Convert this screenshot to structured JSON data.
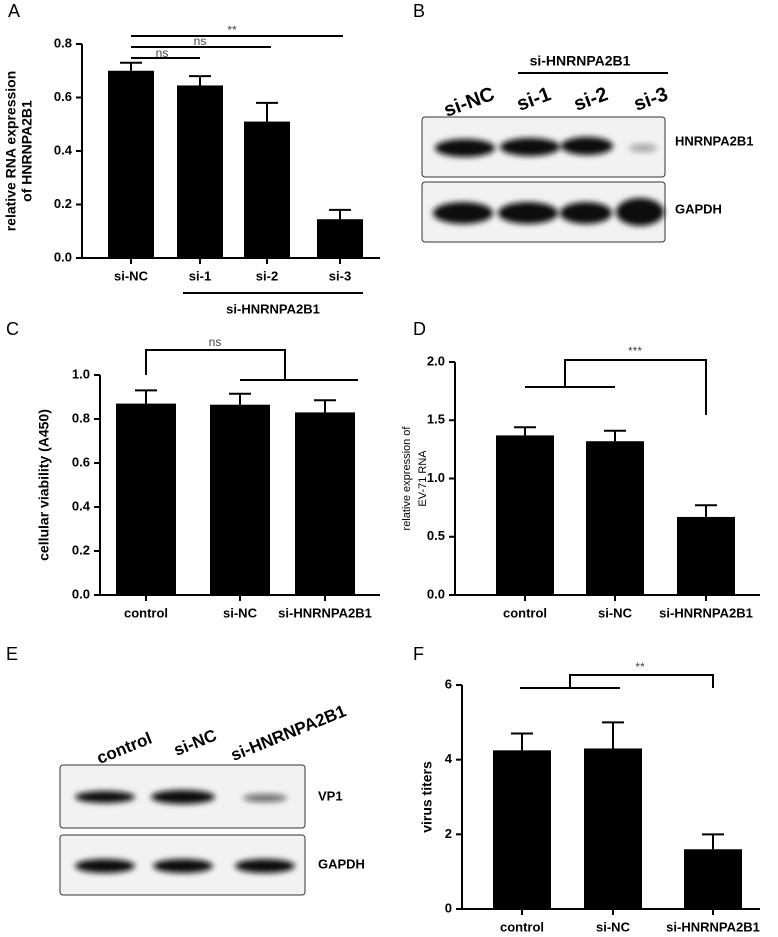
{
  "panel_labels": [
    "A",
    "B",
    "C",
    "D",
    "E",
    "F"
  ],
  "chart_data": [
    {
      "type": "bar",
      "ylabel": [
        "relative RNA expression",
        "of HNRNPA2B1"
      ],
      "categories": [
        "si-NC",
        "si-1",
        "si-2",
        "si-3"
      ],
      "group_label": "si-HNRNPA2B1",
      "values": [
        0.7,
        0.645,
        0.51,
        0.145
      ],
      "errors": [
        0.03,
        0.035,
        0.07,
        0.035
      ],
      "color": "#000000",
      "ylim": [
        0,
        0.8
      ],
      "yticks": [
        {
          "value": 0,
          "label": "0.0"
        },
        0.2,
        0.4,
        0.6,
        0.8
      ],
      "annotations": [
        "ns",
        "ns",
        "**"
      ]
    },
    {
      "type": "bar",
      "ylabel": [
        "cellular viability (A450)"
      ],
      "categories": [
        "control",
        "si-NC",
        "si-HNRNPA2B1"
      ],
      "values": [
        0.87,
        0.865,
        0.83
      ],
      "errors": [
        0.06,
        0.05,
        0.055
      ],
      "color": "#000000",
      "ylim": [
        0,
        1.0
      ],
      "yticks": [
        {
          "value": 0,
          "label": "0.0"
        },
        0.2,
        0.4,
        0.6,
        0.8,
        {
          "value": 1,
          "label": "1.0"
        }
      ],
      "annotations": [
        "ns"
      ]
    },
    {
      "type": "bar",
      "ylabel": [
        "relative expression of",
        "EV-71 RNA"
      ],
      "categories": [
        "control",
        "si-NC",
        "si-HNRNPA2B1"
      ],
      "values": [
        1.37,
        1.32,
        0.67
      ],
      "errors": [
        0.07,
        0.09,
        0.1
      ],
      "color": "#000000",
      "ylim": [
        0,
        2.0
      ],
      "yticks": [
        {
          "value": 0,
          "label": "0.0"
        },
        0.5,
        {
          "value": 1,
          "label": "1.0"
        },
        1.5,
        {
          "value": 2,
          "label": "2.0"
        }
      ],
      "annotations": [
        "***"
      ]
    },
    {
      "type": "bar",
      "ylabel": [
        "virus titers"
      ],
      "categories": [
        "control",
        "si-NC",
        "si-HNRNPA2B1"
      ],
      "values": [
        4.25,
        4.3,
        1.6
      ],
      "errors": [
        0.45,
        0.7,
        0.4
      ],
      "color": "#000000",
      "ylim": [
        0,
        6
      ],
      "yticks": [
        0,
        2,
        4,
        6
      ],
      "annotations": [
        "**"
      ]
    }
  ],
  "blots": [
    {
      "group_label": "si-HNRNPA2B1",
      "lanes": [
        "si-NC",
        "si-1",
        "si-2",
        "si-3"
      ],
      "rows": [
        "HNRNPA2B1",
        "GAPDH"
      ]
    },
    {
      "lanes": [
        "control",
        "si-NC",
        "si-HNRNPA2B1"
      ],
      "rows": [
        "VP1",
        "GAPDH"
      ]
    }
  ]
}
